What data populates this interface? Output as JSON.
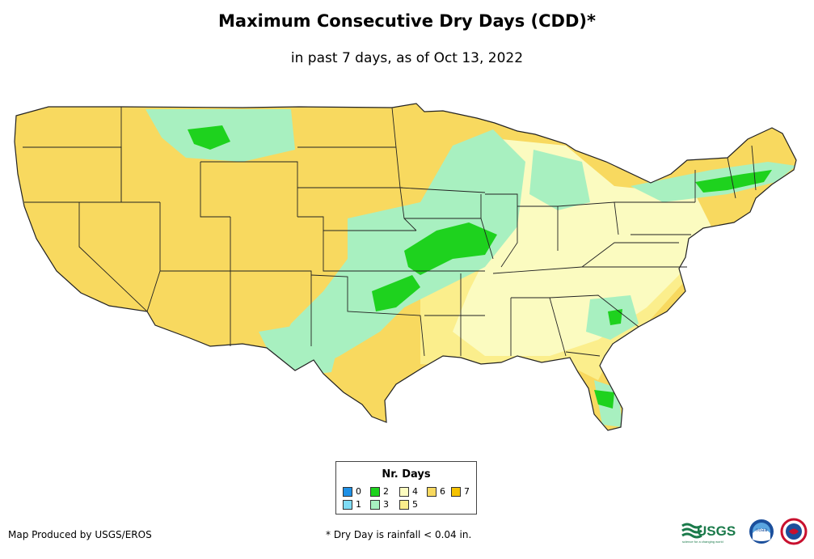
{
  "title": "Maximum Consecutive Dry Days (CDD)*",
  "subtitle": "in past 7 days, as of Oct 13, 2022",
  "legend": {
    "title": "Nr. Days",
    "items": [
      {
        "label": "0",
        "color": "#1e90e6"
      },
      {
        "label": "1",
        "color": "#7fdcf5"
      },
      {
        "label": "2",
        "color": "#1ed21e"
      },
      {
        "label": "3",
        "color": "#a8f0c0"
      },
      {
        "label": "4",
        "color": "#fbfbc0"
      },
      {
        "label": "5",
        "color": "#fbee8c"
      },
      {
        "label": "6",
        "color": "#f8d95f"
      },
      {
        "label": "7",
        "color": "#f5c200"
      }
    ]
  },
  "footer": {
    "producer": "Map Produced by USGS/EROS",
    "note": "* Dry Day is rainfall < 0.04 in."
  },
  "logos": {
    "usgs": "USGS",
    "usgs_tagline": "science for a changing world",
    "noaa": "noaa",
    "nws": "NATIONAL WEATHER SERVICE"
  }
}
